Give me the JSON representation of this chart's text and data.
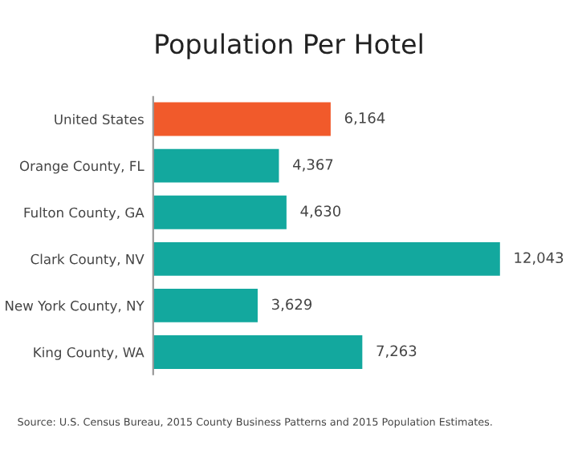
{
  "chart_data": {
    "type": "bar",
    "orientation": "horizontal",
    "title": "Population Per Hotel",
    "categories": [
      "United States",
      "Orange County, FL",
      "Fulton County, GA",
      "Clark County, NV",
      "New York County, NY",
      "King County, WA"
    ],
    "values": [
      6164,
      4367,
      4630,
      12043,
      3629,
      7263
    ],
    "colors": [
      "#f15a2b",
      "#13a89e",
      "#13a89e",
      "#13a89e",
      "#13a89e",
      "#13a89e"
    ],
    "value_labels": [
      "6,164",
      "4,367",
      "4,630",
      "12,043",
      "3,629",
      "7,263"
    ],
    "tick_labels": "y",
    "grid": false,
    "legend": false,
    "annotations": [
      "Source: U.S. Census Bureau, 2015 County Business Patterns and 2015 Population Estimates."
    ]
  }
}
